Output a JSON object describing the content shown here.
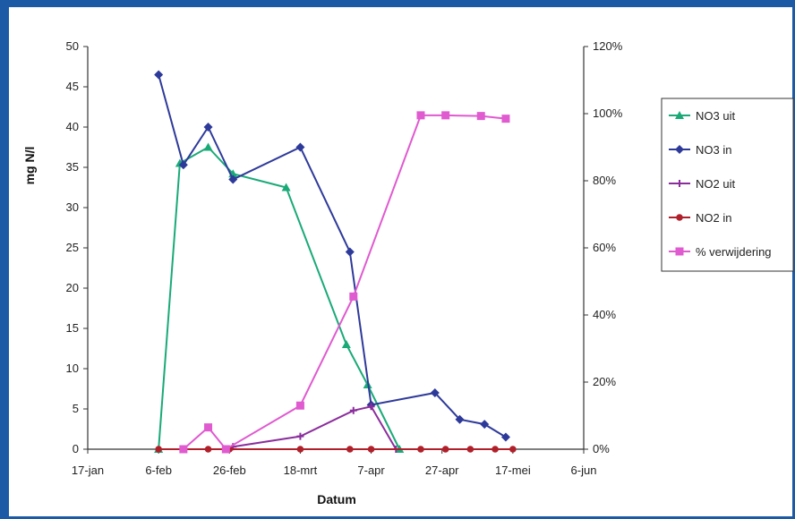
{
  "chart_data": {
    "type": "line",
    "xlabel": "Datum",
    "ylabel": "mg N/l",
    "ylim": [
      0,
      50
    ],
    "y2lim": [
      0,
      1.2
    ],
    "x_ticks": [
      {
        "date": "2003-01-17",
        "label": "17-jan"
      },
      {
        "date": "2003-02-06",
        "label": "6-feb"
      },
      {
        "date": "2003-02-26",
        "label": "26-feb"
      },
      {
        "date": "2003-03-18",
        "label": "18-mrt"
      },
      {
        "date": "2003-04-07",
        "label": "7-apr"
      },
      {
        "date": "2003-04-27",
        "label": "27-apr"
      },
      {
        "date": "2003-05-17",
        "label": "17-mei"
      },
      {
        "date": "2003-06-06",
        "label": "6-jun"
      }
    ],
    "y_ticks": [
      0,
      5,
      10,
      15,
      20,
      25,
      30,
      35,
      40,
      45,
      50
    ],
    "y2_ticks": [
      {
        "value": 0,
        "label": "0%"
      },
      {
        "value": 0.2,
        "label": "20%"
      },
      {
        "value": 0.4,
        "label": "40%"
      },
      {
        "value": 0.6,
        "label": "60%"
      },
      {
        "value": 0.8,
        "label": "80%"
      },
      {
        "value": 1.0,
        "label": "100%"
      },
      {
        "value": 1.2,
        "label": "120%"
      }
    ],
    "series": [
      {
        "name": "NO3 uit",
        "color": "#1aaa78",
        "marker": "triangle",
        "axis": "left",
        "points": [
          [
            "2003-02-06",
            0
          ],
          [
            "2003-02-12",
            35.5
          ],
          [
            "2003-02-20",
            37.5
          ],
          [
            "2003-02-27",
            34.2
          ],
          [
            "2003-03-14",
            32.5
          ],
          [
            "2003-03-31",
            13
          ],
          [
            "2003-04-06",
            8
          ],
          [
            "2003-04-15",
            0
          ]
        ]
      },
      {
        "name": "NO3 in",
        "color": "#2e3a9a",
        "marker": "diamond",
        "axis": "left",
        "points": [
          [
            "2003-02-06",
            46.5
          ],
          [
            "2003-02-13",
            35.3
          ],
          [
            "2003-02-20",
            40
          ],
          [
            "2003-02-27",
            33.5
          ],
          [
            "2003-03-18",
            37.5
          ],
          [
            "2003-04-01",
            24.5
          ],
          [
            "2003-04-07",
            5.5
          ],
          [
            "2003-04-25",
            7
          ],
          [
            "2003-05-02",
            3.7
          ],
          [
            "2003-05-09",
            3.1
          ],
          [
            "2003-05-15",
            1.5
          ]
        ]
      },
      {
        "name": "NO2 uit",
        "color": "#8b2e9c",
        "marker": "plus",
        "axis": "left",
        "points": [
          [
            "2003-02-27",
            0.3
          ],
          [
            "2003-03-18",
            1.6
          ],
          [
            "2003-04-02",
            4.8
          ],
          [
            "2003-04-07",
            5.3
          ],
          [
            "2003-04-14",
            0
          ]
        ]
      },
      {
        "name": "NO2 in",
        "color": "#b0202a",
        "marker": "circle",
        "axis": "left",
        "points": [
          [
            "2003-02-06",
            0
          ],
          [
            "2003-02-13",
            0
          ],
          [
            "2003-02-20",
            0
          ],
          [
            "2003-02-26",
            0
          ],
          [
            "2003-03-18",
            0
          ],
          [
            "2003-04-01",
            0
          ],
          [
            "2003-04-07",
            0
          ],
          [
            "2003-04-21",
            0
          ],
          [
            "2003-04-28",
            0
          ],
          [
            "2003-05-05",
            0
          ],
          [
            "2003-05-12",
            0
          ],
          [
            "2003-05-17",
            0
          ]
        ]
      },
      {
        "name": "% verwijdering",
        "color": "#e05ad0",
        "marker": "square",
        "axis": "right",
        "points": [
          [
            "2003-02-13",
            0
          ],
          [
            "2003-02-20",
            0.065
          ],
          [
            "2003-02-25",
            0
          ],
          [
            "2003-03-18",
            0.13
          ],
          [
            "2003-04-02",
            0.455
          ],
          [
            "2003-04-21",
            0.995
          ],
          [
            "2003-04-28",
            0.995
          ],
          [
            "2003-05-08",
            0.993
          ],
          [
            "2003-05-15",
            0.985
          ]
        ]
      }
    ],
    "legend": "right"
  }
}
